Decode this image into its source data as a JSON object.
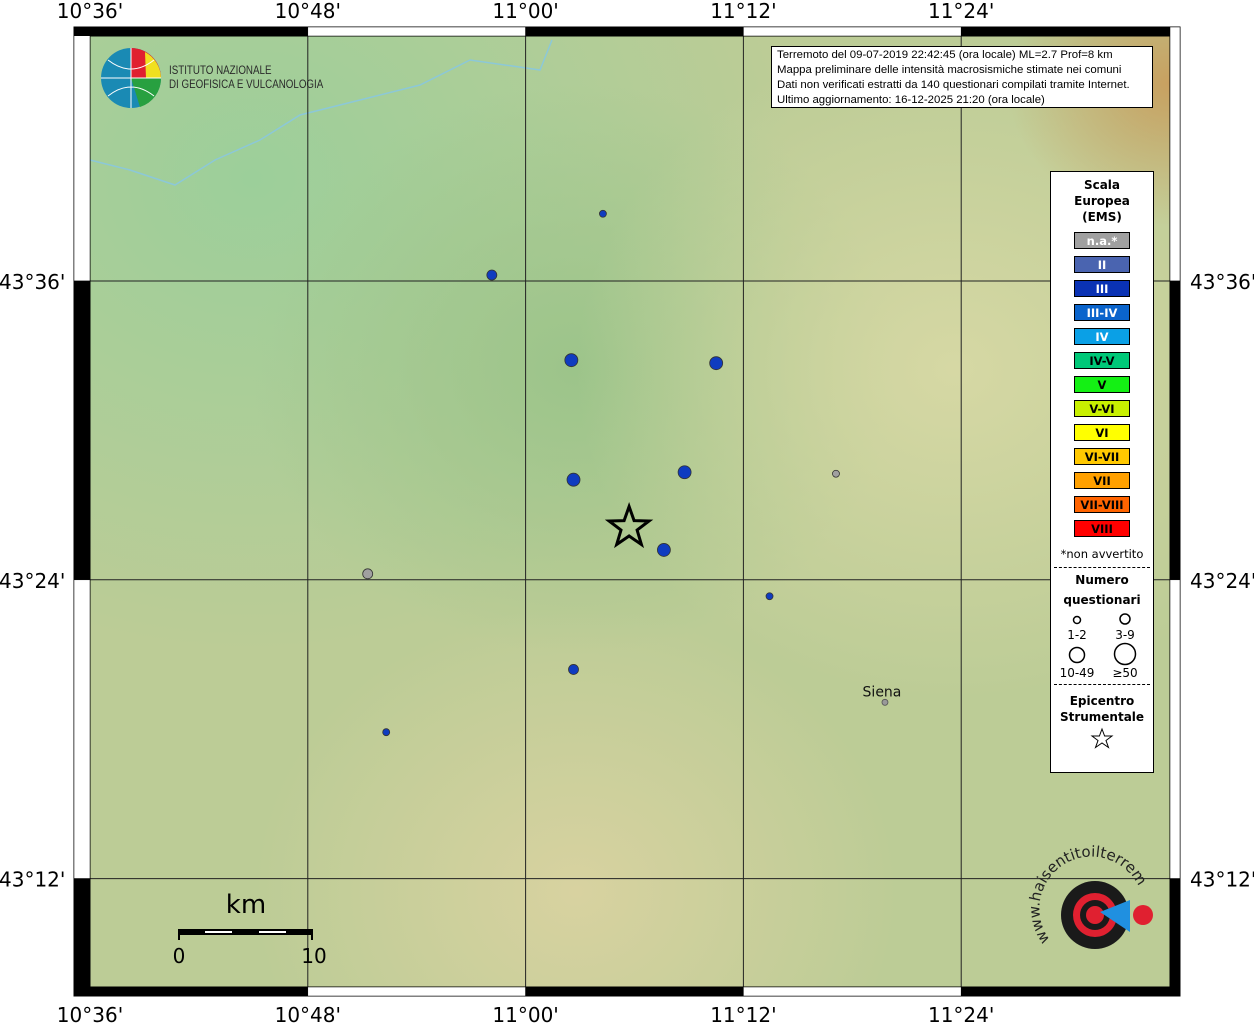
{
  "map": {
    "lon_ticks": [
      "10°36'",
      "10°48'",
      "11°00'",
      "11°12'",
      "11°24'"
    ],
    "lat_ticks": [
      "43°36'",
      "43°24'",
      "43°12'"
    ],
    "lon_range": [
      10.6,
      11.6
    ],
    "lat_range": [
      43.1,
      43.77
    ]
  },
  "info_box": {
    "line1": "Terremoto del 09-07-2019 22:42:45 (ora locale) ML=2.7 Prof=8 km",
    "line2": "Mappa preliminare delle intensità macrosismiche stimate nei comuni",
    "line3": "Dati non verificati estratti da 140 questionari compilati tramite Internet.",
    "line4": "Ultimo aggiornamento: 16-12-2025 21:20 (ora locale)"
  },
  "ingv_logo": {
    "line1": "ISTITUTO NAZIONALE",
    "line2": "DI GEOFISICA E VULCANOLOGIA"
  },
  "hst_logo": {
    "text": "www.haisentitoilterremoto.it"
  },
  "legend": {
    "title1": "Scala",
    "title2": "Europea",
    "title3": "(EMS)",
    "classes": [
      {
        "label": "n.a.*",
        "color": "#a0a0a0",
        "text": "#ffffff"
      },
      {
        "label": "II",
        "color": "#4a64b0",
        "text": "#ffffff"
      },
      {
        "label": "III",
        "color": "#0a32b4",
        "text": "#ffffff"
      },
      {
        "label": "III-IV",
        "color": "#0a64cc",
        "text": "#ffffff"
      },
      {
        "label": "IV",
        "color": "#0aa0e6",
        "text": "#ffffff"
      },
      {
        "label": "IV-V",
        "color": "#00c878",
        "text": "#000000"
      },
      {
        "label": "V",
        "color": "#14f014",
        "text": "#000000"
      },
      {
        "label": "V-VI",
        "color": "#c8f000",
        "text": "#000000"
      },
      {
        "label": "VI",
        "color": "#ffff00",
        "text": "#000000"
      },
      {
        "label": "VI-VII",
        "color": "#ffc800",
        "text": "#000000"
      },
      {
        "label": "VII",
        "color": "#ffa000",
        "text": "#000000"
      },
      {
        "label": "VII-VIII",
        "color": "#ff6400",
        "text": "#000000"
      },
      {
        "label": "VIII",
        "color": "#ff0000",
        "text": "#000000"
      }
    ],
    "note": "*non avvertito",
    "count_title1": "Numero",
    "count_title2": "questionari",
    "counts": [
      "1-2",
      "3-9",
      "10-49",
      "≥50"
    ],
    "epi_title1": "Epicentro",
    "epi_title2": "Strumentale"
  },
  "scale_bar": {
    "unit": "km",
    "start": "0",
    "end": "10"
  },
  "places": [
    {
      "name": "Siena",
      "lon": 11.33,
      "lat": 43.318
    }
  ],
  "epicenter": {
    "lon": 11.095,
    "lat": 43.435
  },
  "observations": [
    {
      "lon": 11.071,
      "lat": 43.645,
      "intensity": "III",
      "count": "1-2"
    },
    {
      "lon": 10.969,
      "lat": 43.604,
      "intensity": "III",
      "count": "3-9"
    },
    {
      "lon": 11.042,
      "lat": 43.547,
      "intensity": "III",
      "count": "10-49"
    },
    {
      "lon": 11.175,
      "lat": 43.545,
      "intensity": "III",
      "count": "10-49"
    },
    {
      "lon": 11.044,
      "lat": 43.467,
      "intensity": "III",
      "count": "10-49"
    },
    {
      "lon": 11.146,
      "lat": 43.472,
      "intensity": "III",
      "count": "10-49"
    },
    {
      "lon": 11.127,
      "lat": 43.42,
      "intensity": "III",
      "count": "10-49"
    },
    {
      "lon": 11.224,
      "lat": 43.389,
      "intensity": "III",
      "count": "1-2"
    },
    {
      "lon": 11.044,
      "lat": 43.34,
      "intensity": "III",
      "count": "3-9"
    },
    {
      "lon": 10.872,
      "lat": 43.298,
      "intensity": "III",
      "count": "1-2"
    },
    {
      "lon": 10.855,
      "lat": 43.404,
      "intensity": "n.a.*",
      "count": "3-9"
    },
    {
      "lon": 11.285,
      "lat": 43.471,
      "intensity": "n.a.*",
      "count": "1-2"
    }
  ]
}
